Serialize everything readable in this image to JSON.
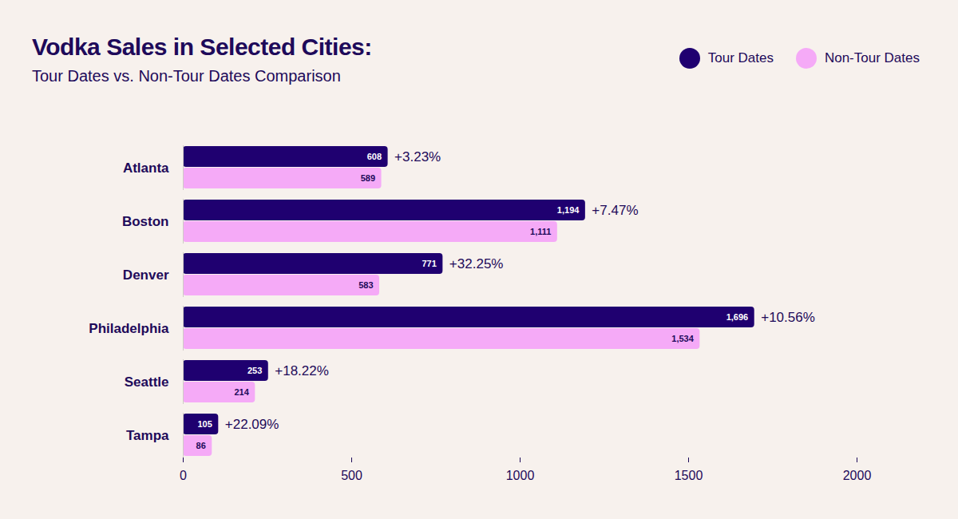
{
  "chart_data": {
    "type": "bar",
    "orientation": "horizontal",
    "title": "Vodka Sales in Selected Cities:",
    "subtitle": "Tour Dates vs. Non-Tour Dates Comparison",
    "categories": [
      "Atlanta",
      "Boston",
      "Denver",
      "Philadelphia",
      "Seattle",
      "Tampa"
    ],
    "series": [
      {
        "name": "Tour Dates",
        "color": "#1f0070",
        "values": [
          608,
          1194,
          771,
          1696,
          253,
          105
        ],
        "value_labels": [
          "608",
          "1,194",
          "771",
          "1,696",
          "253",
          "105"
        ],
        "annotations": [
          "+3.23%",
          "+7.47%",
          "+32.25%",
          "+10.56%",
          "+18.22%",
          "+22.09%"
        ]
      },
      {
        "name": "Non-Tour Dates",
        "color": "#f5aaf7",
        "values": [
          589,
          1111,
          583,
          1534,
          214,
          86
        ],
        "value_labels": [
          "589",
          "1,111",
          "583",
          "1,534",
          "214",
          "86"
        ]
      }
    ],
    "xlim": [
      0,
      2000
    ],
    "xticks": [
      0,
      500,
      1000,
      1500,
      2000
    ],
    "data_labels": true,
    "legend": "top-right",
    "grid": false
  }
}
